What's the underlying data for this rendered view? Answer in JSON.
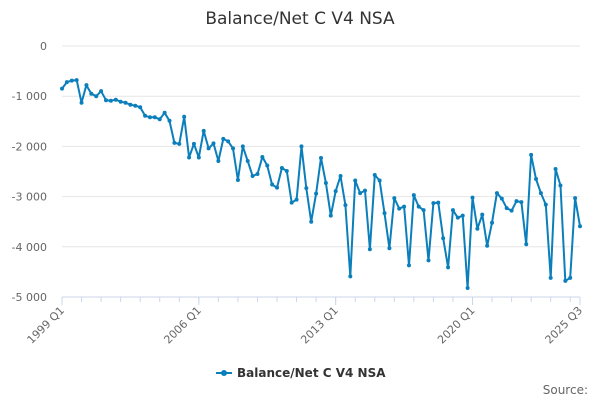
{
  "chart_data": {
    "type": "line",
    "title": "Balance/Net C V4 NSA",
    "xlabel": "",
    "ylabel": "",
    "ylim": [
      -5000,
      0
    ],
    "y_ticks": [
      0,
      -1000,
      -2000,
      -3000,
      -4000,
      -5000
    ],
    "y_tick_labels": [
      "0",
      "-1 000",
      "-2 000",
      "-3 000",
      "-4 000",
      "-5 000"
    ],
    "x_tick_labels": [
      "1999 Q1",
      "2006 Q1",
      "2013 Q1",
      "2020 Q1",
      "2025 Q3"
    ],
    "x_tick_index": [
      0,
      28,
      56,
      84,
      106
    ],
    "grid": true,
    "legend_position": "bottom-center",
    "series": [
      {
        "name": "Balance/Net C V4 NSA",
        "color": "#0b7fbb",
        "values": [
          -850,
          -720,
          -690,
          -680,
          -1130,
          -780,
          -950,
          -1000,
          -900,
          -1080,
          -1090,
          -1070,
          -1110,
          -1130,
          -1170,
          -1190,
          -1220,
          -1390,
          -1420,
          -1420,
          -1460,
          -1330,
          -1490,
          -1930,
          -1950,
          -1410,
          -2220,
          -1950,
          -2220,
          -1690,
          -2040,
          -1940,
          -2290,
          -1850,
          -1900,
          -2040,
          -2670,
          -2000,
          -2290,
          -2590,
          -2550,
          -2210,
          -2380,
          -2760,
          -2820,
          -2430,
          -2490,
          -3120,
          -3060,
          -2000,
          -2830,
          -3500,
          -2940,
          -2230,
          -2730,
          -3380,
          -2890,
          -2590,
          -3170,
          -4590,
          -2680,
          -2930,
          -2880,
          -4050,
          -2570,
          -2680,
          -3330,
          -4030,
          -3030,
          -3240,
          -3200,
          -4370,
          -2970,
          -3200,
          -3270,
          -4270,
          -3130,
          -3120,
          -3830,
          -4410,
          -3270,
          -3420,
          -3380,
          -4820,
          -3020,
          -3640,
          -3360,
          -3980,
          -3520,
          -2930,
          -3040,
          -3230,
          -3280,
          -3090,
          -3110,
          -3950,
          -2170,
          -2650,
          -2930,
          -3160,
          -4620,
          -2450,
          -2780,
          -4680,
          -4620,
          -3030,
          -3590
        ]
      }
    ],
    "credit": "Source:"
  }
}
